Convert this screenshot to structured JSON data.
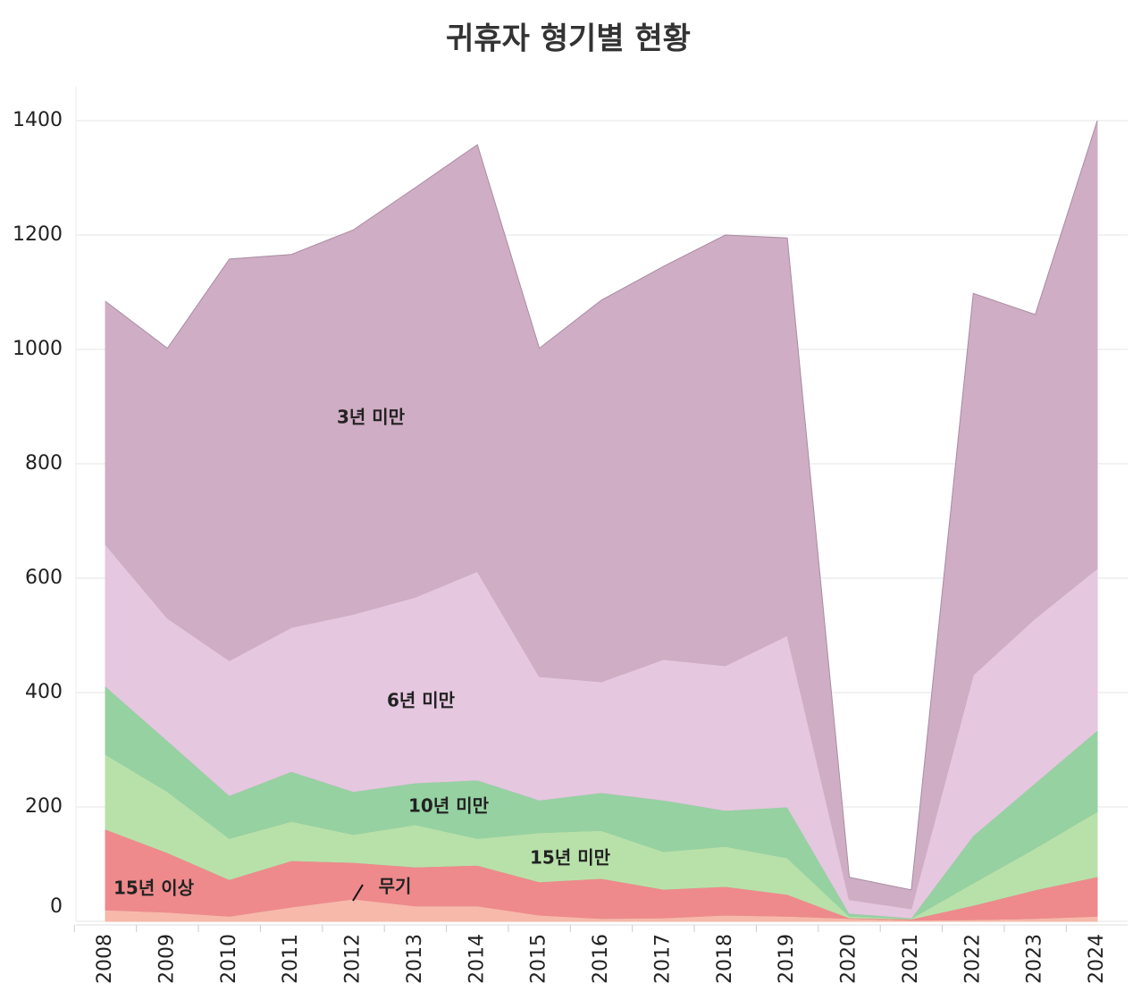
{
  "chart_data": {
    "type": "stacked-area",
    "title": "귀휴자 형기별 현황",
    "categories": [
      "2008",
      "2009",
      "2010",
      "2011",
      "2012",
      "2013",
      "2014",
      "2015",
      "2016",
      "2017",
      "2018",
      "2019",
      "2020",
      "2021",
      "2022",
      "2023",
      "2024"
    ],
    "series": [
      {
        "name": "무기",
        "color": "#f7b9aa",
        "values": [
          20,
          16,
          9,
          25,
          39,
          27,
          27,
          11,
          5,
          6,
          11,
          9,
          5,
          2,
          3,
          5,
          9
        ]
      },
      {
        "name": "15년 이상",
        "color": "#ee8a8c",
        "values": [
          141,
          104,
          64,
          81,
          64,
          68,
          71,
          58,
          70,
          50,
          50,
          38,
          1,
          2,
          25,
          50,
          69
        ]
      },
      {
        "name": "15년 미만",
        "color": "#b8e1aa",
        "values": [
          131,
          107,
          72,
          69,
          49,
          74,
          47,
          86,
          84,
          66,
          70,
          64,
          3,
          1,
          39,
          73,
          114
        ]
      },
      {
        "name": "10년 미만",
        "color": "#96d1a2",
        "values": [
          119,
          89,
          75,
          87,
          75,
          73,
          102,
          57,
          66,
          90,
          63,
          89,
          5,
          1,
          83,
          114,
          142
        ]
      },
      {
        "name": "6년 미만",
        "color": "#e5c7df",
        "values": [
          248,
          214,
          236,
          252,
          310,
          325,
          365,
          216,
          194,
          246,
          253,
          300,
          24,
          16,
          281,
          288,
          283
        ]
      },
      {
        "name": "3년 미만",
        "color": "#cfadc5",
        "values": [
          425,
          472,
          702,
          652,
          672,
          716,
          746,
          574,
          667,
          687,
          753,
          695,
          39,
          33,
          667,
          531,
          783
        ]
      }
    ],
    "ylim": [
      0,
      1460
    ],
    "yticks": [
      0,
      200,
      400,
      600,
      800,
      1000,
      1200,
      1400
    ],
    "grid": true
  }
}
